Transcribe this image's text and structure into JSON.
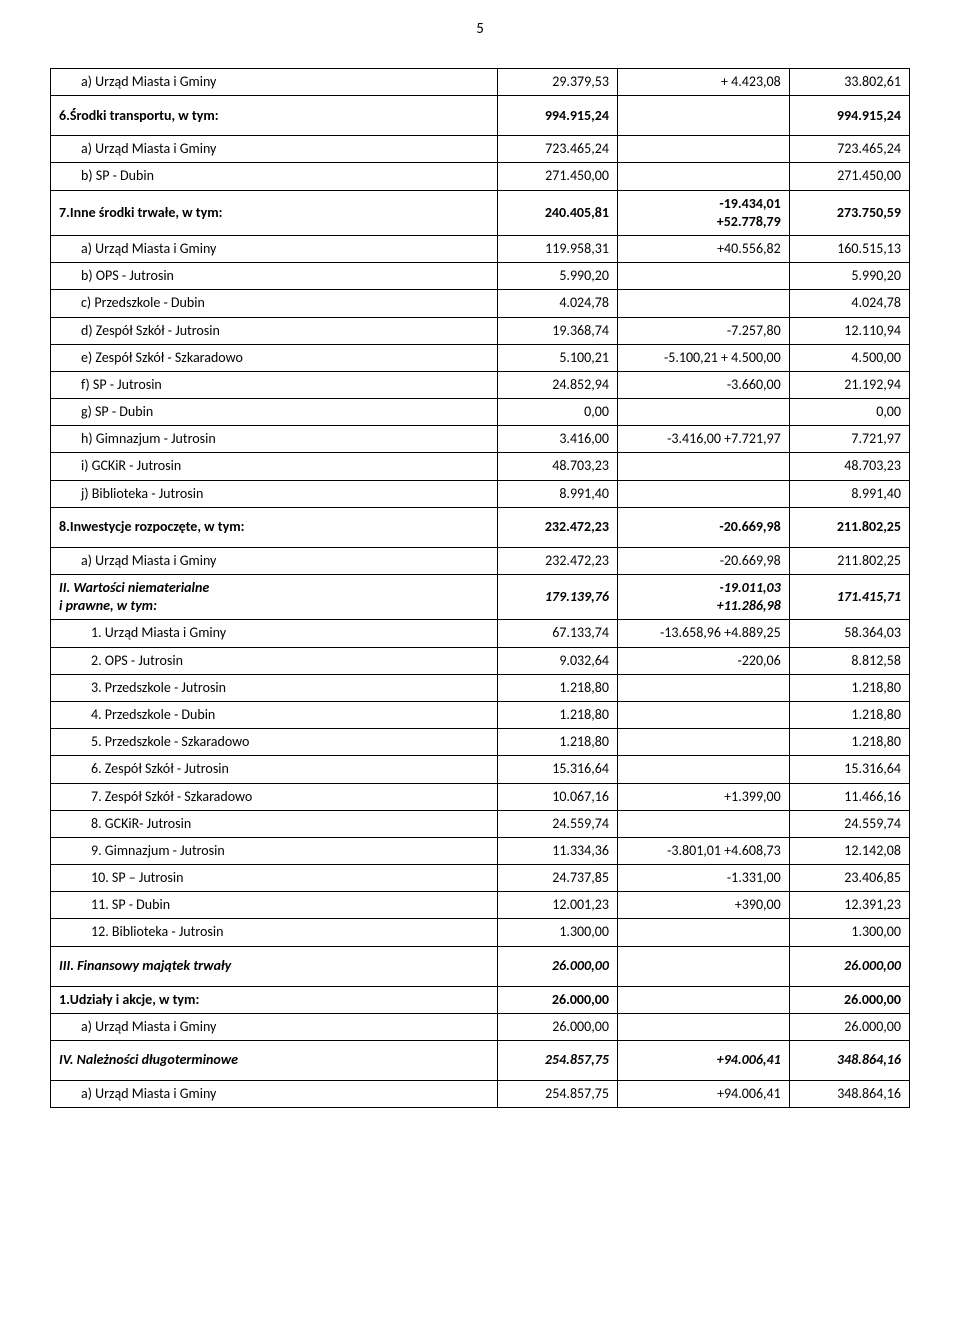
{
  "page_number": "5",
  "rows": [
    {
      "label": "a)  Urząd Miasta i Gminy",
      "v1": "29.379,53",
      "v2": "+ 4.423,08",
      "v3": "33.802,61",
      "cls": "indent1"
    },
    {
      "label": "6.Środki transportu, w tym:",
      "v1": "994.915,24",
      "v2": "",
      "v3": "994.915,24",
      "cls": "bold tall"
    },
    {
      "label": "a)  Urząd Miasta i Gminy",
      "v1": "723.465,24",
      "v2": "",
      "v3": "723.465,24",
      "cls": "indent1"
    },
    {
      "label": "b)  SP - Dubin",
      "v1": "271.450,00",
      "v2": "",
      "v3": "271.450,00",
      "cls": "indent1"
    },
    {
      "label": "7.Inne środki trwałe, w tym:",
      "v1": "240.405,81",
      "v2": "-19.434,01\n+52.778,79",
      "v3": "273.750,59",
      "cls": "bold"
    },
    {
      "label": "a)  Urząd Miasta i Gminy",
      "v1": "119.958,31",
      "v2": "+40.556,82",
      "v3": "160.515,13",
      "cls": "indent1"
    },
    {
      "label": "b)  OPS - Jutrosin",
      "v1": "5.990,20",
      "v2": "",
      "v3": "5.990,20",
      "cls": "indent1"
    },
    {
      "label": "c)   Przedszkole - Dubin",
      "v1": "4.024,78",
      "v2": "",
      "v3": "4.024,78",
      "cls": "indent1"
    },
    {
      "label": "d)  Zespół Szkół - Jutrosin",
      "v1": "19.368,74",
      "v2": "-7.257,80",
      "v3": "12.110,94",
      "cls": "indent1"
    },
    {
      "label": "e)  Zespół Szkół - Szkaradowo",
      "v1": "5.100,21",
      "v2": "-5.100,21   + 4.500,00",
      "v3": "4.500,00",
      "cls": "indent1"
    },
    {
      "label": "f)   SP - Jutrosin",
      "v1": "24.852,94",
      "v2": "-3.660,00",
      "v3": "21.192,94",
      "cls": "indent1"
    },
    {
      "label": "g)   SP - Dubin",
      "v1": "0,00",
      "v2": "",
      "v3": "0,00",
      "cls": "indent1"
    },
    {
      "label": "h)  Gimnazjum - Jutrosin",
      "v1": "3.416,00",
      "v2": "-3.416,00   +7.721,97",
      "v3": "7.721,97",
      "cls": "indent1"
    },
    {
      "label": "i)    GCKiR - Jutrosin",
      "v1": "48.703,23",
      "v2": "",
      "v3": "48.703,23",
      "cls": "indent1"
    },
    {
      "label": "j)    Biblioteka - Jutrosin",
      "v1": "8.991,40",
      "v2": "",
      "v3": "8.991,40",
      "cls": "indent1"
    },
    {
      "label": "8.Inwestycje rozpoczęte, w tym:",
      "v1": "232.472,23",
      "v2": "-20.669,98",
      "v3": "211.802,25",
      "cls": "bold tall"
    },
    {
      "label": "a)  Urząd Miasta i Gminy",
      "v1": "232.472,23",
      "v2": "-20.669,98",
      "v3": "211.802,25",
      "cls": "indent1"
    },
    {
      "label": "II. Wartości niematerialne\ni prawne, w tym:",
      "v1": "179.139,76",
      "v2": "-19.011,03\n+11.286,98",
      "v3": "171.415,71",
      "cls": "bold italic"
    },
    {
      "label": "1.   Urząd Miasta i Gminy",
      "v1": "67.133,74",
      "v2": "-13.658,96  +4.889,25",
      "v3": "58.364,03",
      "cls": "indent2"
    },
    {
      "label": "2.   OPS - Jutrosin",
      "v1": "9.032,64",
      "v2": "-220,06",
      "v3": "8.812,58",
      "cls": "indent2"
    },
    {
      "label": "3.   Przedszkole - Jutrosin",
      "v1": "1.218,80",
      "v2": "",
      "v3": "1.218,80",
      "cls": "indent2"
    },
    {
      "label": "4.   Przedszkole - Dubin",
      "v1": "1.218,80",
      "v2": "",
      "v3": "1.218,80",
      "cls": "indent2"
    },
    {
      "label": "5.   Przedszkole - Szkaradowo",
      "v1": "1.218,80",
      "v2": "",
      "v3": "1.218,80",
      "cls": "indent2"
    },
    {
      "label": "6.   Zespół Szkół - Jutrosin",
      "v1": "15.316,64",
      "v2": "",
      "v3": "15.316,64",
      "cls": "indent2"
    },
    {
      "label": "7.   Zespół Szkół - Szkaradowo",
      "v1": "10.067,16",
      "v2": "+1.399,00",
      "v3": "11.466,16",
      "cls": "indent2"
    },
    {
      "label": "8.   GCKiR- Jutrosin",
      "v1": "24.559,74",
      "v2": "",
      "v3": "24.559,74",
      "cls": "indent2"
    },
    {
      "label": "9.   Gimnazjum - Jutrosin",
      "v1": "11.334,36",
      "v2": "-3.801,01  +4.608,73",
      "v3": "12.142,08",
      "cls": "indent2"
    },
    {
      "label": "10.  SP – Jutrosin",
      "v1": "24.737,85",
      "v2": "-1.331,00",
      "v3": "23.406,85",
      "cls": "indent2"
    },
    {
      "label": "11.  SP - Dubin",
      "v1": "12.001,23",
      "v2": "+390,00",
      "v3": "12.391,23",
      "cls": "indent2"
    },
    {
      "label": "12.  Biblioteka - Jutrosin",
      "v1": "1.300,00",
      "v2": "",
      "v3": "1.300,00",
      "cls": "indent2"
    },
    {
      "label": "III. Finansowy majątek trwały",
      "v1": "26.000,00",
      "v2": "",
      "v3": "26.000,00",
      "cls": "bold italic tall"
    },
    {
      "label": "1.Udziały i akcje, w tym:",
      "v1": "26.000,00",
      "v2": "",
      "v3": "26.000,00",
      "cls": "bold"
    },
    {
      "label": "a)  Urząd Miasta i Gminy",
      "v1": "26.000,00",
      "v2": "",
      "v3": "26.000,00",
      "cls": "indent1"
    },
    {
      "label": "IV. Należności długoterminowe",
      "v1": "254.857,75",
      "v2": "+94.006,41",
      "v3": "348.864,16",
      "cls": "bold italic tall"
    },
    {
      "label": "a)  Urząd Miasta i Gminy",
      "v1": "254.857,75",
      "v2": "+94.006,41",
      "v3": "348.864,16",
      "cls": "indent1"
    }
  ]
}
